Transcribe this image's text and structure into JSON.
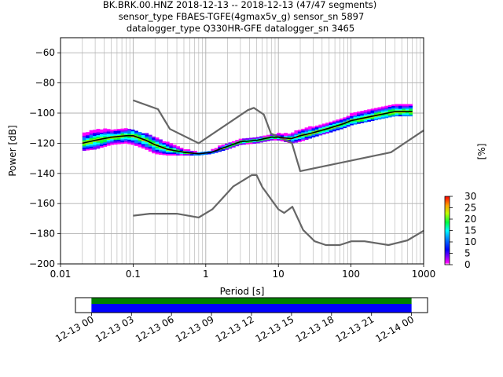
{
  "title": {
    "line1": "BK.BRK.00.HNZ   2018-12-13 -- 2018-12-13  (47/47 segments)",
    "line2": "sensor_type FBAES-TGFE(4gmax5v_g) sensor_sn 5897",
    "line3": "datalogger_type Q330HR-GFE datalogger_sn 3465"
  },
  "colors": {
    "model_curve": "#666666",
    "mean_curve": "#000000",
    "grid": "#b0b0b0",
    "coverage_green": "#008000",
    "coverage_blue": "#0000ff"
  },
  "chart_data": [
    {
      "type": "heatmap",
      "name": "ppsd",
      "xlabel": "Period [s]",
      "ylabel": "Power [dB]",
      "xscale": "log",
      "xlim": [
        0.01,
        1000
      ],
      "ylim": [
        -200,
        -50
      ],
      "x_ticks": [
        "0.01",
        "0.1",
        "1",
        "10",
        "100",
        "1000"
      ],
      "y_ticks": [
        "−200",
        "−180",
        "−160",
        "−140",
        "−120",
        "−100",
        "−80",
        "−60"
      ],
      "y_tick_values": [
        -200,
        -180,
        -160,
        -140,
        -120,
        -100,
        -80,
        -60
      ],
      "grid": true,
      "mean_curve": {
        "period": [
          0.02,
          0.03,
          0.05,
          0.08,
          0.1,
          0.15,
          0.2,
          0.3,
          0.5,
          0.8,
          1.2,
          2,
          3,
          5,
          8,
          10,
          15,
          20,
          30,
          50,
          80,
          100,
          200,
          400,
          700
        ],
        "power": [
          -120,
          -118,
          -116,
          -115,
          -115,
          -118,
          -121,
          -124,
          -126,
          -127,
          -126,
          -122,
          -119,
          -118,
          -116,
          -116,
          -117,
          -115,
          -113,
          -110,
          -107,
          -105,
          -102,
          -99,
          -99
        ]
      },
      "density_band": {
        "period": [
          0.02,
          0.03,
          0.05,
          0.08,
          0.1,
          0.15,
          0.2,
          0.3,
          0.5,
          0.8,
          1.2,
          2,
          3,
          5,
          8,
          10,
          15,
          20,
          30,
          50,
          80,
          100,
          200,
          400,
          700
        ],
        "lower": [
          -125,
          -124,
          -121,
          -120,
          -121,
          -124,
          -127,
          -128,
          -128,
          -128,
          -127,
          -124,
          -121,
          -120,
          -118,
          -118,
          -120,
          -119,
          -116,
          -113,
          -110,
          -108,
          -105,
          -102,
          -102
        ],
        "upper": [
          -114,
          -111,
          -111,
          -110,
          -112,
          -114,
          -116,
          -120,
          -124,
          -126,
          -125,
          -120,
          -117,
          -116,
          -114,
          -114,
          -114,
          -111,
          -109,
          -106,
          -103,
          -101,
          -97,
          -94,
          -94
        ]
      },
      "nhnm": {
        "period": [
          0.1,
          0.22,
          0.32,
          0.8,
          3.8,
          4.6,
          6.3,
          7.9,
          15.4,
          20,
          354.8,
          1000
        ],
        "power": [
          -91.5,
          -97.4,
          -110.5,
          -120,
          -98,
          -96.5,
          -101,
          -113.5,
          -120,
          -138.5,
          -126,
          -111.5
        ]
      },
      "nlnm": {
        "period": [
          0.1,
          0.17,
          0.4,
          0.8,
          1.24,
          2.4,
          4.3,
          5,
          6,
          10,
          12,
          15.6,
          21.9,
          31.6,
          45,
          70,
          101,
          154,
          328,
          600,
          1000
        ],
        "power": [
          -168,
          -166.7,
          -166.7,
          -169.2,
          -163.7,
          -148.6,
          -141.1,
          -141.1,
          -149,
          -163.8,
          -166.2,
          -162.1,
          -177.5,
          -185,
          -187.5,
          -187.5,
          -185,
          -185,
          -187.5,
          -184.4,
          -178
        ]
      }
    },
    {
      "type": "colorbar",
      "name": "density-colorbar",
      "label": "[%]",
      "range": [
        0,
        30
      ],
      "ticks": [
        "0",
        "5",
        "10",
        "15",
        "20",
        "25",
        "30"
      ],
      "tick_values": [
        0,
        5,
        10,
        15,
        20,
        25,
        30
      ]
    },
    {
      "type": "bar",
      "name": "data-coverage",
      "tick_labels": [
        "12-13 00",
        "12-13 03",
        "12-13 06",
        "12-13 09",
        "12-13 12",
        "12-13 15",
        "12-13 18",
        "12-13 21",
        "12-14 00"
      ],
      "tick_hours": [
        0,
        3,
        6,
        9,
        12,
        15,
        18,
        21,
        24
      ],
      "xlim_hours": [
        -1.2,
        25.2
      ],
      "coverage_hours": [
        0,
        24
      ]
    }
  ]
}
